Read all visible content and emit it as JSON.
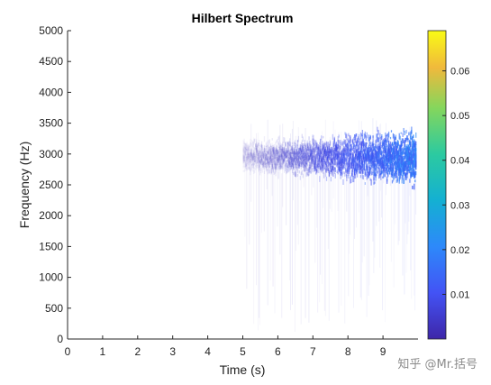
{
  "chart_data": {
    "type": "heatmap",
    "title": "Hilbert Spectrum",
    "xlabel": "Time (s)",
    "ylabel": "Frequency (Hz)",
    "xlim": [
      0,
      10
    ],
    "ylim": [
      0,
      5000
    ],
    "xticks": [
      "0",
      "1",
      "2",
      "3",
      "4",
      "5",
      "6",
      "7",
      "8",
      "9"
    ],
    "yticks": [
      "0",
      "500",
      "1000",
      "1500",
      "2000",
      "2500",
      "3000",
      "3500",
      "4000",
      "4500",
      "5000"
    ],
    "colorbar": {
      "colormap": "parula",
      "range": [
        0,
        0.069
      ],
      "ticks": [
        "0.01",
        "0.02",
        "0.03",
        "0.04",
        "0.05",
        "0.06"
      ],
      "colors": [
        "#3e26a8",
        "#4353f5",
        "#2d89fa",
        "#14b0d2",
        "#2ccaa0",
        "#85d65c",
        "#f0b93c",
        "#f9fb15"
      ]
    },
    "energy_band": {
      "time_range_s": [
        5.0,
        9.95
      ],
      "center_frequency_hz": 2950,
      "core_band_hz": [
        2700,
        3200
      ],
      "outlier_frequency_range_hz": [
        0,
        3900
      ],
      "peak_amplitude_approx": 0.022
    }
  },
  "watermark": "知乎 @Mr.括号"
}
